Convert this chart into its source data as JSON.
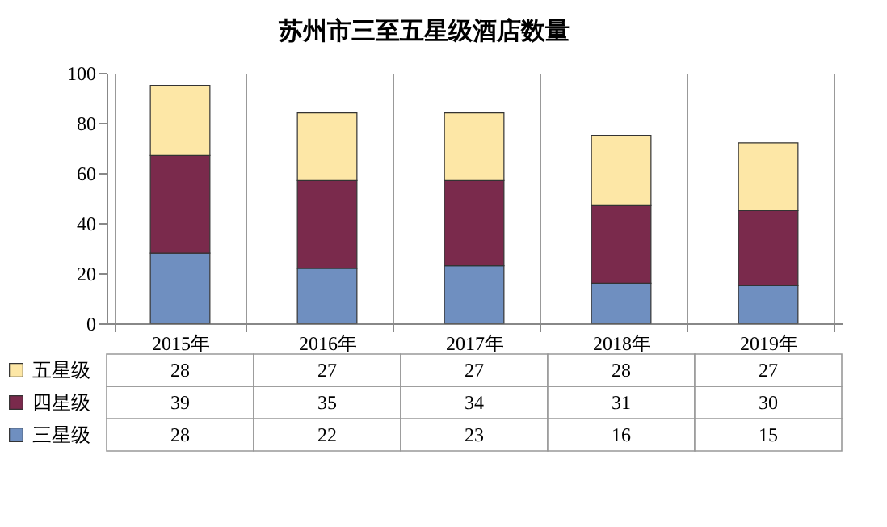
{
  "chart_data": {
    "type": "bar",
    "title": "苏州市三至五星级酒店数量",
    "categories": [
      "2015年",
      "2016年",
      "2017年",
      "2018年",
      "2019年"
    ],
    "stacked": true,
    "series": [
      {
        "name": "三星级",
        "color": "#6f8fc0",
        "values": [
          28,
          22,
          23,
          16,
          15
        ]
      },
      {
        "name": "四星级",
        "color": "#7a2a4c",
        "values": [
          39,
          35,
          34,
          31,
          30
        ]
      },
      {
        "name": "五星级",
        "color": "#fde7a6",
        "values": [
          28,
          27,
          27,
          28,
          27
        ]
      }
    ],
    "ylim": [
      0,
      100
    ],
    "yticks": [
      0,
      20,
      40,
      60,
      80,
      100
    ],
    "data_labels": true,
    "legend": "bottom left",
    "grid": false
  }
}
